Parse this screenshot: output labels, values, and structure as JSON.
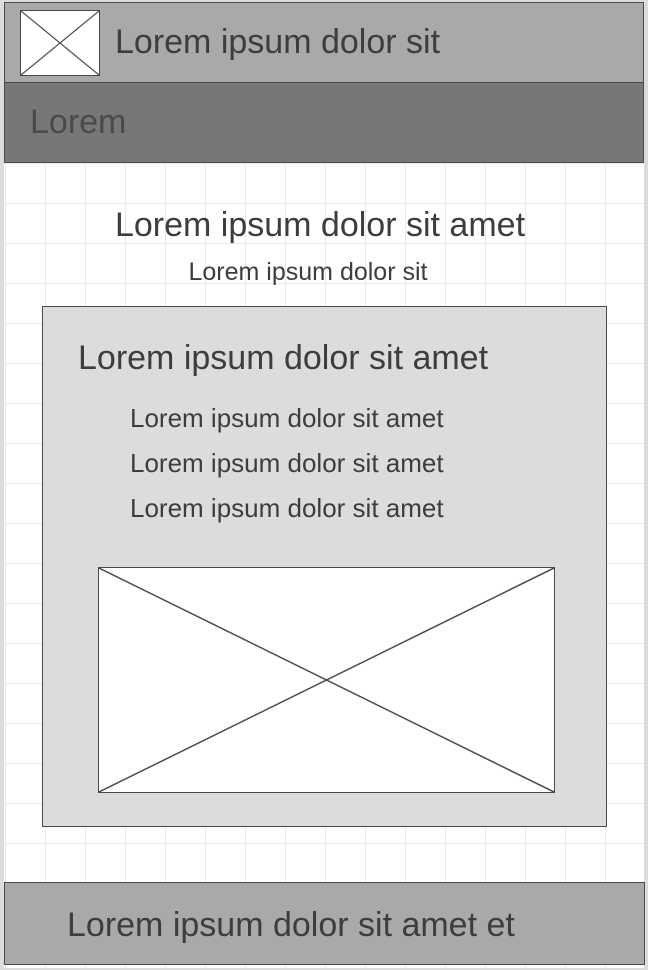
{
  "header": {
    "logo_icon": "image-placeholder-icon",
    "title": "Lorem ipsum dolor sit"
  },
  "subnav": {
    "label": "Lorem"
  },
  "main": {
    "title": "Lorem ipsum dolor sit amet",
    "subtitle": "Lorem ipsum dolor sit",
    "card": {
      "title": "Lorem ipsum dolor sit amet",
      "items": [
        "Lorem ipsum dolor sit amet",
        "Lorem ipsum dolor sit amet",
        "Lorem ipsum dolor sit amet"
      ],
      "image_icon": "image-placeholder-icon"
    }
  },
  "footer": {
    "text": "Lorem ipsum dolor sit amet et"
  },
  "colors": {
    "header_bg": "#a9a9a9",
    "subnav_bg": "#777777",
    "card_bg": "#dcdcdc",
    "border": "#4a4a4a",
    "text": "#3d3d3d"
  }
}
